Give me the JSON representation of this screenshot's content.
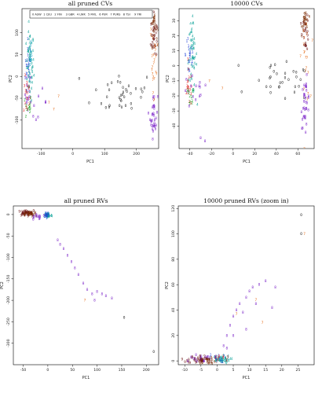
{
  "colors": {
    "0": "#000000",
    "1": "#1f3fd6",
    "2": "#14a11e",
    "3": "#e02020",
    "4": "#13a59c",
    "5": "#0aa0c8",
    "6": "#7a2a00",
    "7": "#e56a16",
    "8": "#7a22c8",
    "9": "#6a0f0f"
  },
  "legend": [
    "0 ASW",
    "1 CEU",
    "2 FIN",
    "3 GBR",
    "4 LWK",
    "5 MXL",
    "6 PUR",
    "7 PURS",
    "8 TSI",
    "9 YRI"
  ],
  "chart_data": [
    {
      "type": "scatter",
      "title": "all pruned CVs",
      "xlabel": "PC1",
      "ylabel": "PC2",
      "xlim": [
        -160,
        270
      ],
      "ylim": [
        -165,
        155
      ],
      "xticks": [
        -100,
        0,
        100,
        200
      ],
      "yticks": [
        -100,
        -50,
        0,
        50,
        100
      ],
      "xtick_labels": [
        "-100",
        "0",
        "100",
        "200"
      ],
      "ytick_labels": [
        "-100",
        "-50",
        "0",
        "50",
        "100"
      ],
      "clusters": [
        {
          "label": "1",
          "cx": -140,
          "cy": 15,
          "sx": 5,
          "sy": 35,
          "n": 30
        },
        {
          "label": "8",
          "cx": -140,
          "cy": -40,
          "sx": 5,
          "sy": 25,
          "n": 12
        },
        {
          "label": "4",
          "cx": -135,
          "cy": 25,
          "sx": 6,
          "sy": 40,
          "n": 55
        },
        {
          "label": "3",
          "cx": -145,
          "cy": -45,
          "sx": 5,
          "sy": 22,
          "n": 18
        },
        {
          "label": "2",
          "cx": -140,
          "cy": -70,
          "sx": 5,
          "sy": 15,
          "n": 12
        },
        {
          "label": "5",
          "cx": -135,
          "cy": 60,
          "sx": 5,
          "sy": 20,
          "n": 8
        },
        {
          "label": "0",
          "cx": 160,
          "cy": -40,
          "sx": 50,
          "sy": 25,
          "n": 35
        },
        {
          "label": "6",
          "cx": 255,
          "cy": 115,
          "sx": 5,
          "sy": 22,
          "n": 28
        },
        {
          "label": "9",
          "cx": 255,
          "cy": 90,
          "sx": 5,
          "sy": 25,
          "n": 25
        },
        {
          "label": "8",
          "cx": 255,
          "cy": -90,
          "sx": 6,
          "sy": 25,
          "n": 35
        },
        {
          "label": "7",
          "cx": 255,
          "cy": 20,
          "sx": 6,
          "sy": 60,
          "n": 25
        },
        {
          "label": "8",
          "cx": -110,
          "cy": -60,
          "sx": 15,
          "sy": 15,
          "n": 8
        }
      ],
      "points": [
        {
          "label": "0",
          "x": 20,
          "y": -5
        },
        {
          "label": "0",
          "x": 145,
          "y": 0
        },
        {
          "label": "7",
          "x": -45,
          "y": -45
        },
        {
          "label": "7",
          "x": -60,
          "y": -75
        },
        {
          "label": "7",
          "x": -75,
          "y": -60
        }
      ]
    },
    {
      "type": "scatter",
      "title": "10000 CVs",
      "xlabel": "PC1",
      "ylabel": "PC2",
      "xlim": [
        -50,
        75
      ],
      "ylim": [
        -55,
        38
      ],
      "xticks": [
        -40,
        -20,
        0,
        20,
        40,
        60
      ],
      "yticks": [
        -40,
        -30,
        -20,
        -10,
        0,
        10,
        20,
        30
      ],
      "xtick_labels": [
        "-40",
        "-20",
        "0",
        "20",
        "40",
        "60"
      ],
      "ytick_labels": [
        "-40",
        "-30",
        "-20",
        "-10",
        "0",
        "10",
        "20",
        "30"
      ],
      "clusters": [
        {
          "label": "4",
          "cx": -38,
          "cy": 5,
          "sx": 2.2,
          "sy": 12,
          "n": 55
        },
        {
          "label": "1",
          "cx": -40,
          "cy": 8,
          "sx": 2,
          "sy": 10,
          "n": 20
        },
        {
          "label": "3",
          "cx": -41,
          "cy": -15,
          "sx": 2,
          "sy": 6,
          "n": 18
        },
        {
          "label": "2",
          "cx": -40,
          "cy": -22,
          "sx": 2,
          "sy": 4,
          "n": 10
        },
        {
          "label": "8",
          "cx": -35,
          "cy": -18,
          "sx": 6,
          "sy": 6,
          "n": 14
        },
        {
          "label": "0",
          "cx": 45,
          "cy": -12,
          "sx": 14,
          "sy": 6,
          "n": 30
        },
        {
          "label": "6",
          "cx": 67,
          "cy": 30,
          "sx": 1.5,
          "sy": 4,
          "n": 25
        },
        {
          "label": "9",
          "cx": 67,
          "cy": 22,
          "sx": 1.5,
          "sy": 6,
          "n": 22
        },
        {
          "label": "8",
          "cx": 67,
          "cy": -25,
          "sx": 2,
          "sy": 8,
          "n": 35
        },
        {
          "label": "7",
          "cx": 67,
          "cy": 5,
          "sx": 2,
          "sy": 15,
          "n": 20
        }
      ],
      "points": [
        {
          "label": "0",
          "x": 5,
          "y": 0
        },
        {
          "label": "0",
          "x": 35,
          "y": 0
        },
        {
          "label": "7",
          "x": -22,
          "y": -10
        },
        {
          "label": "7",
          "x": -10,
          "y": -15
        },
        {
          "label": "8",
          "x": -30,
          "y": -48
        },
        {
          "label": "8",
          "x": -26,
          "y": -50
        }
      ]
    },
    {
      "type": "scatter",
      "title": "all pruned RVs",
      "xlabel": "PC1",
      "ylabel": "PC2",
      "xlim": [
        -70,
        225
      ],
      "ylim": [
        -350,
        20
      ],
      "xticks": [
        -50,
        0,
        50,
        100,
        150,
        200
      ],
      "yticks": [
        -300,
        -250,
        -200,
        -150,
        -100,
        -50,
        0
      ],
      "xtick_labels": [
        "-50",
        "0",
        "50",
        "100",
        "150",
        "200"
      ],
      "ytick_labels": [
        "-300",
        "-250",
        "-200",
        "-150",
        "-100",
        "-50",
        "0"
      ],
      "clusters": [
        {
          "label": "9",
          "cx": -45,
          "cy": 3,
          "sx": 8,
          "sy": 3,
          "n": 45
        },
        {
          "label": "6",
          "cx": -35,
          "cy": 0,
          "sx": 6,
          "sy": 3,
          "n": 20
        },
        {
          "label": "4",
          "cx": 0,
          "cy": -2,
          "sx": 4,
          "sy": 3,
          "n": 40
        },
        {
          "label": "1",
          "cx": -2,
          "cy": 0,
          "sx": 3,
          "sy": 3,
          "n": 15
        },
        {
          "label": "8",
          "cx": -20,
          "cy": -5,
          "sx": 8,
          "sy": 4,
          "n": 12
        }
      ],
      "points": [
        {
          "label": "8",
          "x": 20,
          "y": -60
        },
        {
          "label": "8",
          "x": 25,
          "y": -70
        },
        {
          "label": "8",
          "x": 32,
          "y": -80
        },
        {
          "label": "8",
          "x": 40,
          "y": -95
        },
        {
          "label": "8",
          "x": 48,
          "y": -110
        },
        {
          "label": "8",
          "x": 55,
          "y": -125
        },
        {
          "label": "8",
          "x": 62,
          "y": -140
        },
        {
          "label": "8",
          "x": 72,
          "y": -160
        },
        {
          "label": "8",
          "x": 80,
          "y": -175
        },
        {
          "label": "8",
          "x": 90,
          "y": -185
        },
        {
          "label": "8",
          "x": 100,
          "y": -180
        },
        {
          "label": "8",
          "x": 110,
          "y": -185
        },
        {
          "label": "8",
          "x": 118,
          "y": -190
        },
        {
          "label": "8",
          "x": 130,
          "y": -195
        },
        {
          "label": "8",
          "x": 95,
          "y": -200
        },
        {
          "label": "7",
          "x": 75,
          "y": -200
        },
        {
          "label": "0",
          "x": 155,
          "y": -240
        },
        {
          "label": "0",
          "x": 215,
          "y": -320
        }
      ]
    },
    {
      "type": "scatter",
      "title": "10000 pruned RVs (zoom in)",
      "xlabel": "PC1",
      "ylabel": "PC2",
      "xlim": [
        -12,
        30
      ],
      "ylim": [
        -3,
        122
      ],
      "xticks": [
        -10,
        -5,
        0,
        5,
        10,
        15,
        20,
        25
      ],
      "yticks": [
        0,
        20,
        40,
        60,
        80,
        100,
        120
      ],
      "xtick_labels": [
        "-10",
        "-5",
        "0",
        "5",
        "10",
        "15",
        "20",
        "25"
      ],
      "ytick_labels": [
        "0",
        "20",
        "40",
        "60",
        "80",
        "100",
        "120"
      ],
      "clusters": [
        {
          "label": "9",
          "cx": -5,
          "cy": 1,
          "sx": 2,
          "sy": 1.5,
          "n": 45
        },
        {
          "label": "6",
          "cx": -3,
          "cy": 0,
          "sx": 1.5,
          "sy": 1.2,
          "n": 18
        },
        {
          "label": "4",
          "cx": 1,
          "cy": 1,
          "sx": 1.5,
          "sy": 1.5,
          "n": 45
        },
        {
          "label": "1",
          "cx": 0,
          "cy": 2,
          "sx": 1.2,
          "sy": 1.5,
          "n": 12
        },
        {
          "label": "8",
          "cx": -6,
          "cy": 2,
          "sx": 2.5,
          "sy": 1.5,
          "n": 14
        },
        {
          "label": "3",
          "cx": 1.5,
          "cy": 3,
          "sx": 1,
          "sy": 2,
          "n": 8
        }
      ],
      "points": [
        {
          "label": "8",
          "x": 2,
          "y": 12
        },
        {
          "label": "8",
          "x": 3,
          "y": 20
        },
        {
          "label": "8",
          "x": 4,
          "y": 28
        },
        {
          "label": "8",
          "x": 5,
          "y": 35
        },
        {
          "label": "8",
          "x": 6,
          "y": 40
        },
        {
          "label": "8",
          "x": 7,
          "y": 45
        },
        {
          "label": "8",
          "x": 9,
          "y": 50
        },
        {
          "label": "8",
          "x": 10,
          "y": 55
        },
        {
          "label": "8",
          "x": 11,
          "y": 58
        },
        {
          "label": "8",
          "x": 13,
          "y": 60
        },
        {
          "label": "8",
          "x": 15,
          "y": 63
        },
        {
          "label": "8",
          "x": 18,
          "y": 58
        },
        {
          "label": "8",
          "x": 8,
          "y": 38
        },
        {
          "label": "8",
          "x": 12,
          "y": 45
        },
        {
          "label": "8",
          "x": 17,
          "y": 42
        },
        {
          "label": "7",
          "x": 6,
          "y": 37
        },
        {
          "label": "7",
          "x": 12,
          "y": 48
        },
        {
          "label": "7",
          "x": 14,
          "y": 30
        },
        {
          "label": "7",
          "x": 27,
          "y": 100
        },
        {
          "label": "0",
          "x": 26,
          "y": 115
        },
        {
          "label": "0",
          "x": 26,
          "y": 100
        },
        {
          "label": "8",
          "x": 5,
          "y": 20
        },
        {
          "label": "8",
          "x": 9,
          "y": 25
        },
        {
          "label": "8",
          "x": 3,
          "y": 10
        }
      ]
    }
  ]
}
